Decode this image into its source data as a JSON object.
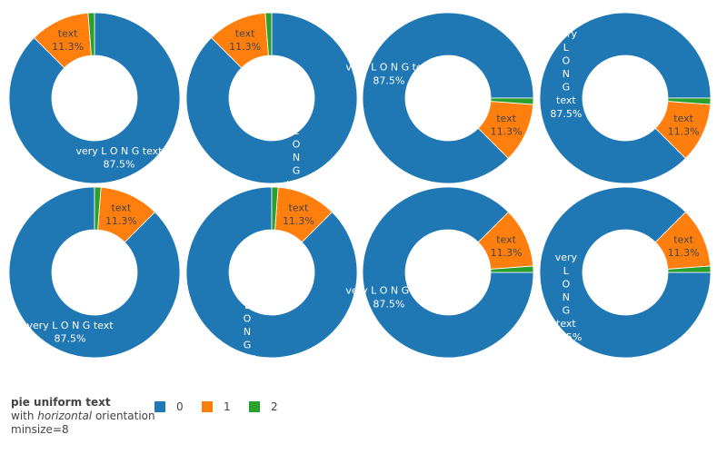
{
  "chart_data": {
    "type": "pie",
    "hole": 0.5,
    "values": [
      87.5,
      11.3,
      1.2
    ],
    "labels": [
      "very L O N G text",
      "text",
      ""
    ],
    "percent_labels": [
      "87.5%",
      "11.3%",
      ""
    ],
    "colors": [
      "#1f77b4",
      "#ff7f0e",
      "#2ca02c"
    ],
    "legend": [
      {
        "name": "0",
        "color": "#1f77b4"
      },
      {
        "name": "1",
        "color": "#ff7f0e"
      },
      {
        "name": "2",
        "color": "#2ca02c"
      }
    ],
    "legend_title": {
      "line1": "pie uniform text",
      "line2_prefix": "with ",
      "line2_em": "horizontal",
      "line2_suffix": " orientation",
      "line3": "minsize=8"
    },
    "pies": [
      {
        "rotation": 0,
        "direction": "clockwise",
        "long_label": "horizontal"
      },
      {
        "rotation": 0,
        "direction": "clockwise",
        "long_label": "vertical"
      },
      {
        "rotation": 90,
        "direction": "counterclockwise",
        "long_label": "horizontal"
      },
      {
        "rotation": 90,
        "direction": "counterclockwise",
        "long_label": "vertical"
      },
      {
        "rotation": 0,
        "direction": "counterclockwise",
        "long_label": "horizontal"
      },
      {
        "rotation": 0,
        "direction": "counterclockwise",
        "long_label": "vertical"
      },
      {
        "rotation": 90,
        "direction": "clockwise",
        "long_label": "horizontal"
      },
      {
        "rotation": 90,
        "direction": "clockwise",
        "long_label": "vertical"
      }
    ]
  }
}
